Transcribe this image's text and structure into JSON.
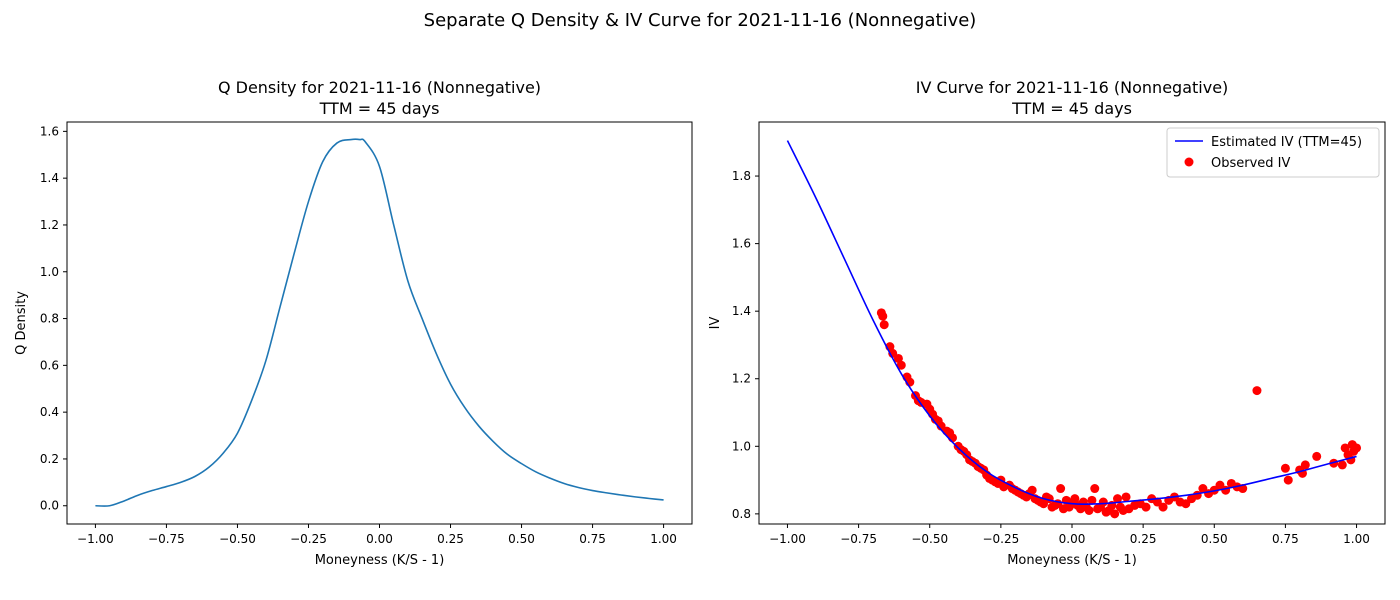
{
  "suptitle": "Separate Q Density & IV Curve for 2021-11-16 (Nonnegative)",
  "chart_data": [
    {
      "type": "line",
      "title": "Q Density for 2021-11-16 (Nonnegative)",
      "subtitle": "TTM = 45 days",
      "xlabel": "Moneyness (K/S - 1)",
      "ylabel": "Q Density",
      "xlim": [
        -1.1,
        1.1
      ],
      "ylim": [
        -0.078,
        1.64
      ],
      "xticks": [
        -1.0,
        -0.75,
        -0.5,
        -0.25,
        0.0,
        0.25,
        0.5,
        0.75,
        1.0
      ],
      "xtick_labels": [
        "−1.00",
        "−0.75",
        "−0.50",
        "−0.25",
        "0.00",
        "0.25",
        "0.50",
        "0.75",
        "1.00"
      ],
      "yticks": [
        0.0,
        0.2,
        0.4,
        0.6,
        0.8,
        1.0,
        1.2,
        1.4,
        1.6
      ],
      "ytick_labels": [
        "0.0",
        "0.2",
        "0.4",
        "0.6",
        "0.8",
        "1.0",
        "1.2",
        "1.4",
        "1.6"
      ],
      "grid": false,
      "colors": {
        "line": "#1f77b4"
      },
      "x": [
        -1.0,
        -0.95,
        -0.9,
        -0.85,
        -0.8,
        -0.75,
        -0.7,
        -0.65,
        -0.6,
        -0.55,
        -0.5,
        -0.45,
        -0.4,
        -0.35,
        -0.3,
        -0.25,
        -0.2,
        -0.15,
        -0.1,
        -0.07,
        -0.05,
        0.0,
        0.05,
        0.1,
        0.15,
        0.2,
        0.25,
        0.3,
        0.35,
        0.4,
        0.45,
        0.5,
        0.55,
        0.6,
        0.65,
        0.7,
        0.75,
        0.8,
        0.85,
        0.9,
        0.95,
        1.0
      ],
      "series": [
        {
          "values": [
            0.0,
            0.0,
            0.02,
            0.045,
            0.065,
            0.082,
            0.1,
            0.125,
            0.165,
            0.225,
            0.31,
            0.45,
            0.62,
            0.85,
            1.08,
            1.3,
            1.47,
            1.55,
            1.565,
            1.565,
            1.555,
            1.45,
            1.2,
            0.96,
            0.8,
            0.65,
            0.52,
            0.42,
            0.34,
            0.275,
            0.22,
            0.18,
            0.145,
            0.118,
            0.095,
            0.078,
            0.065,
            0.055,
            0.046,
            0.038,
            0.031,
            0.025
          ]
        }
      ]
    },
    {
      "type": "line+scatter",
      "title": "IV Curve for 2021-11-16 (Nonnegative)",
      "subtitle": "TTM = 45 days",
      "xlabel": "Moneyness (K/S - 1)",
      "ylabel": "IV",
      "xlim": [
        -1.1,
        1.1
      ],
      "ylim": [
        0.77,
        1.96
      ],
      "xticks": [
        -1.0,
        -0.75,
        -0.5,
        -0.25,
        0.0,
        0.25,
        0.5,
        0.75,
        1.0
      ],
      "xtick_labels": [
        "−1.00",
        "−0.75",
        "−0.50",
        "−0.25",
        "0.00",
        "0.25",
        "0.50",
        "0.75",
        "1.00"
      ],
      "yticks": [
        0.8,
        1.0,
        1.2,
        1.4,
        1.6,
        1.8
      ],
      "ytick_labels": [
        "0.8",
        "1.0",
        "1.2",
        "1.4",
        "1.6",
        "1.8"
      ],
      "grid": false,
      "legend_position": "top-right",
      "colors": {
        "line": "#0000ff",
        "scatter": "#ff0000"
      },
      "series": [
        {
          "name": "Estimated IV (TTM=45)",
          "kind": "line",
          "x": [
            -1.0,
            -0.9,
            -0.8,
            -0.7,
            -0.6,
            -0.5,
            -0.4,
            -0.3,
            -0.2,
            -0.1,
            0.0,
            0.1,
            0.2,
            0.3,
            0.4,
            0.5,
            0.6,
            0.7,
            0.8,
            0.9,
            1.0
          ],
          "y": [
            1.905,
            1.735,
            1.555,
            1.375,
            1.215,
            1.09,
            0.995,
            0.925,
            0.878,
            0.845,
            0.83,
            0.83,
            0.837,
            0.845,
            0.855,
            0.868,
            0.885,
            0.905,
            0.925,
            0.948,
            0.97
          ]
        },
        {
          "name": "Observed IV",
          "kind": "scatter",
          "x": [
            -0.67,
            -0.665,
            -0.66,
            -0.64,
            -0.63,
            -0.61,
            -0.6,
            -0.58,
            -0.57,
            -0.55,
            -0.54,
            -0.53,
            -0.51,
            -0.5,
            -0.49,
            -0.48,
            -0.47,
            -0.46,
            -0.44,
            -0.43,
            -0.42,
            -0.4,
            -0.39,
            -0.38,
            -0.37,
            -0.36,
            -0.35,
            -0.34,
            -0.33,
            -0.32,
            -0.31,
            -0.3,
            -0.29,
            -0.28,
            -0.27,
            -0.26,
            -0.25,
            -0.24,
            -0.22,
            -0.21,
            -0.2,
            -0.19,
            -0.18,
            -0.17,
            -0.16,
            -0.15,
            -0.14,
            -0.13,
            -0.12,
            -0.11,
            -0.1,
            -0.09,
            -0.08,
            -0.07,
            -0.06,
            -0.05,
            -0.04,
            -0.03,
            -0.02,
            -0.01,
            0.0,
            0.01,
            0.02,
            0.03,
            0.04,
            0.05,
            0.06,
            0.07,
            0.08,
            0.09,
            0.1,
            0.11,
            0.12,
            0.13,
            0.14,
            0.15,
            0.16,
            0.17,
            0.18,
            0.19,
            0.2,
            0.22,
            0.24,
            0.26,
            0.28,
            0.3,
            0.32,
            0.34,
            0.36,
            0.38,
            0.4,
            0.42,
            0.44,
            0.46,
            0.48,
            0.5,
            0.52,
            0.54,
            0.56,
            0.58,
            0.6,
            0.65,
            0.75,
            0.76,
            0.8,
            0.81,
            0.82,
            0.86,
            0.92,
            0.95,
            0.96,
            0.97,
            0.98,
            0.985,
            0.99,
            1.0
          ],
          "y": [
            1.395,
            1.385,
            1.36,
            1.295,
            1.275,
            1.26,
            1.24,
            1.205,
            1.19,
            1.15,
            1.135,
            1.13,
            1.125,
            1.11,
            1.095,
            1.08,
            1.075,
            1.06,
            1.045,
            1.04,
            1.025,
            1.0,
            0.99,
            0.985,
            0.975,
            0.96,
            0.955,
            0.95,
            0.94,
            0.935,
            0.93,
            0.915,
            0.905,
            0.9,
            0.895,
            0.89,
            0.9,
            0.88,
            0.885,
            0.875,
            0.87,
            0.865,
            0.86,
            0.855,
            0.85,
            0.86,
            0.87,
            0.845,
            0.84,
            0.835,
            0.83,
            0.85,
            0.845,
            0.82,
            0.825,
            0.83,
            0.875,
            0.815,
            0.84,
            0.82,
            0.83,
            0.845,
            0.825,
            0.815,
            0.835,
            0.82,
            0.81,
            0.84,
            0.875,
            0.815,
            0.82,
            0.835,
            0.805,
            0.81,
            0.825,
            0.8,
            0.845,
            0.82,
            0.81,
            0.85,
            0.815,
            0.825,
            0.83,
            0.82,
            0.845,
            0.835,
            0.82,
            0.84,
            0.85,
            0.835,
            0.83,
            0.845,
            0.855,
            0.875,
            0.86,
            0.87,
            0.885,
            0.87,
            0.89,
            0.88,
            0.875,
            1.165,
            0.935,
            0.9,
            0.93,
            0.92,
            0.945,
            0.97,
            0.95,
            0.945,
            0.995,
            0.975,
            0.96,
            1.005,
            0.985,
            0.995
          ]
        }
      ]
    }
  ]
}
